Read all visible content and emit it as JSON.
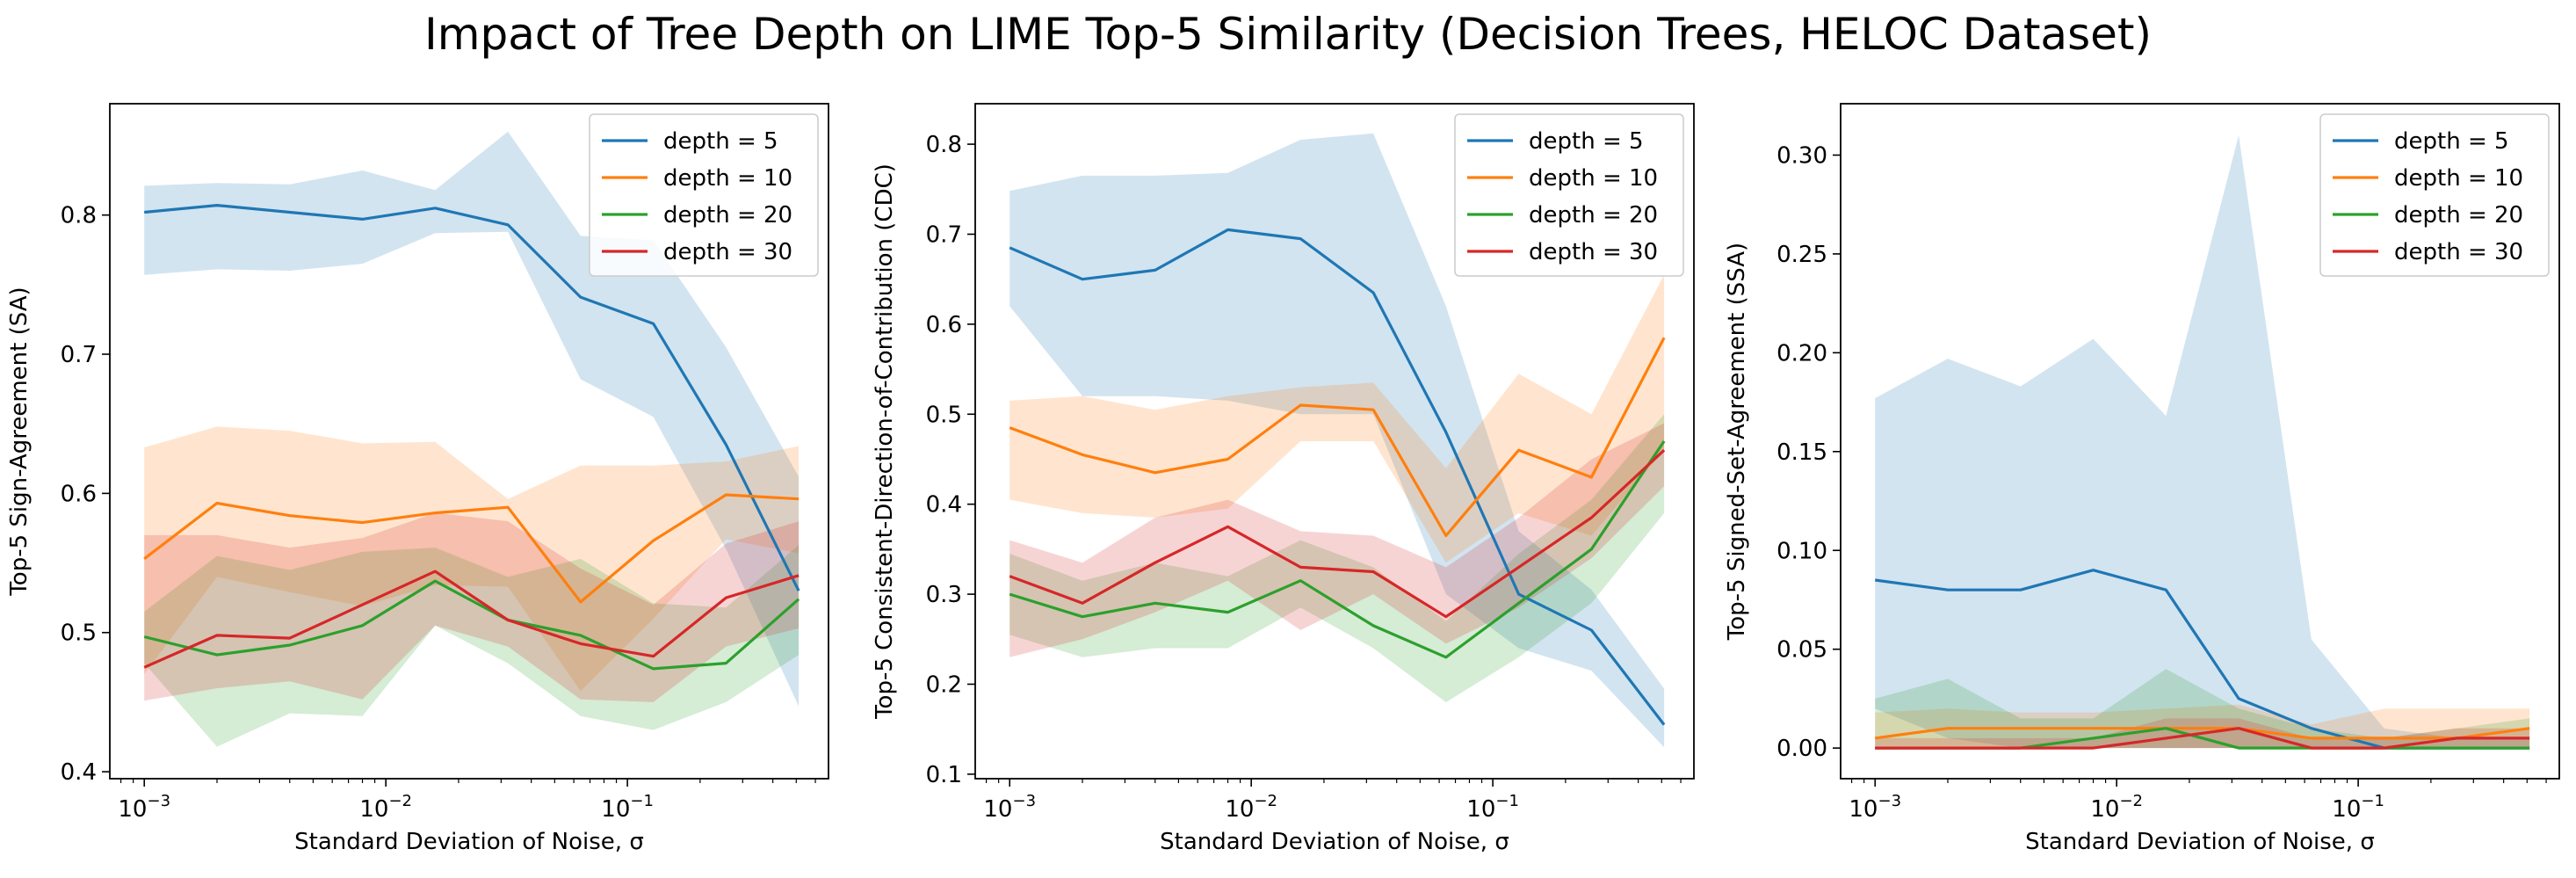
{
  "figure_title": "Impact of Tree Depth on LIME Top-5 Similarity (Decision Trees, HELOC Dataset)",
  "colors": {
    "depth = 5": "#1f77b4",
    "depth = 10": "#ff7f0e",
    "depth = 20": "#2ca02c",
    "depth = 30": "#d62728"
  },
  "chart_data": [
    {
      "type": "line",
      "title": "",
      "xlabel": "Standard Deviation of Noise, σ",
      "ylabel": "Top-5 Sign-Agreement (SA)",
      "xscale": "log",
      "xlim": [
        0.00072,
        0.68
      ],
      "ylim": [
        0.395,
        0.88
      ],
      "x_ticks": [
        0.001,
        0.01,
        0.1
      ],
      "x_tick_labels": [
        {
          "base": "10",
          "exp": "−3"
        },
        {
          "base": "10",
          "exp": "−2"
        },
        {
          "base": "10",
          "exp": "−1"
        }
      ],
      "y_ticks": [
        0.4,
        0.5,
        0.6,
        0.7,
        0.8
      ],
      "y_tick_labels": [
        "0.4",
        "0.5",
        "0.6",
        "0.7",
        "0.8"
      ],
      "legend_position": "upper right",
      "x": [
        0.001,
        0.002,
        0.004,
        0.008,
        0.016,
        0.032,
        0.064,
        0.128,
        0.256,
        0.512
      ],
      "series": [
        {
          "name": "depth = 5",
          "values": [
            0.802,
            0.807,
            0.802,
            0.797,
            0.805,
            0.793,
            0.741,
            0.722,
            0.635,
            0.53
          ],
          "lower": [
            0.757,
            0.761,
            0.76,
            0.765,
            0.787,
            0.788,
            0.682,
            0.655,
            0.56,
            0.447
          ],
          "upper": [
            0.821,
            0.823,
            0.822,
            0.832,
            0.818,
            0.86,
            0.785,
            0.782,
            0.705,
            0.612
          ]
        },
        {
          "name": "depth = 10",
          "values": [
            0.553,
            0.593,
            0.584,
            0.579,
            0.586,
            0.59,
            0.522,
            0.566,
            0.599,
            0.596
          ],
          "lower": [
            0.47,
            0.54,
            0.529,
            0.519,
            0.534,
            0.533,
            0.458,
            0.51,
            0.567,
            0.557
          ],
          "upper": [
            0.633,
            0.648,
            0.645,
            0.636,
            0.637,
            0.596,
            0.62,
            0.62,
            0.623,
            0.634
          ]
        },
        {
          "name": "depth = 20",
          "values": [
            0.497,
            0.484,
            0.491,
            0.505,
            0.537,
            0.509,
            0.498,
            0.474,
            0.478,
            0.524
          ],
          "lower": [
            0.478,
            0.418,
            0.442,
            0.44,
            0.505,
            0.478,
            0.44,
            0.43,
            0.45,
            0.484
          ],
          "upper": [
            0.515,
            0.555,
            0.545,
            0.558,
            0.561,
            0.54,
            0.553,
            0.521,
            0.518,
            0.563
          ]
        },
        {
          "name": "depth = 30",
          "values": [
            0.475,
            0.498,
            0.496,
            0.52,
            0.544,
            0.509,
            0.492,
            0.483,
            0.525,
            0.541
          ],
          "lower": [
            0.451,
            0.46,
            0.465,
            0.452,
            0.505,
            0.49,
            0.452,
            0.45,
            0.49,
            0.503
          ],
          "upper": [
            0.57,
            0.57,
            0.561,
            0.568,
            0.586,
            0.58,
            0.546,
            0.52,
            0.564,
            0.58
          ]
        }
      ]
    },
    {
      "type": "line",
      "title": "",
      "xlabel": "Standard Deviation of Noise, σ",
      "ylabel": "Top-5 Consistent-Direction-of-Contribution (CDC)",
      "xscale": "log",
      "xlim": [
        0.00072,
        0.68
      ],
      "ylim": [
        0.095,
        0.845
      ],
      "x_ticks": [
        0.001,
        0.01,
        0.1
      ],
      "x_tick_labels": [
        {
          "base": "10",
          "exp": "−3"
        },
        {
          "base": "10",
          "exp": "−2"
        },
        {
          "base": "10",
          "exp": "−1"
        }
      ],
      "y_ticks": [
        0.1,
        0.2,
        0.3,
        0.4,
        0.5,
        0.6,
        0.7,
        0.8
      ],
      "y_tick_labels": [
        "0.1",
        "0.2",
        "0.3",
        "0.4",
        "0.5",
        "0.6",
        "0.7",
        "0.8"
      ],
      "legend_position": "upper right",
      "x": [
        0.001,
        0.002,
        0.004,
        0.008,
        0.016,
        0.032,
        0.064,
        0.128,
        0.256,
        0.512
      ],
      "series": [
        {
          "name": "depth = 5",
          "values": [
            0.685,
            0.65,
            0.66,
            0.705,
            0.695,
            0.635,
            0.48,
            0.3,
            0.26,
            0.155
          ],
          "lower": [
            0.62,
            0.52,
            0.52,
            0.515,
            0.5,
            0.5,
            0.3,
            0.24,
            0.215,
            0.13
          ],
          "upper": [
            0.748,
            0.765,
            0.765,
            0.768,
            0.805,
            0.812,
            0.62,
            0.37,
            0.305,
            0.195
          ]
        },
        {
          "name": "depth = 10",
          "values": [
            0.485,
            0.455,
            0.435,
            0.45,
            0.51,
            0.505,
            0.365,
            0.46,
            0.43,
            0.585
          ],
          "lower": [
            0.405,
            0.39,
            0.385,
            0.395,
            0.47,
            0.47,
            0.335,
            0.39,
            0.365,
            0.46
          ],
          "upper": [
            0.515,
            0.52,
            0.505,
            0.52,
            0.53,
            0.535,
            0.44,
            0.545,
            0.5,
            0.655
          ]
        },
        {
          "name": "depth = 20",
          "values": [
            0.3,
            0.275,
            0.29,
            0.28,
            0.315,
            0.265,
            0.23,
            0.29,
            0.35,
            0.47
          ],
          "lower": [
            0.255,
            0.23,
            0.24,
            0.24,
            0.285,
            0.24,
            0.18,
            0.23,
            0.29,
            0.39
          ],
          "upper": [
            0.345,
            0.315,
            0.335,
            0.32,
            0.36,
            0.33,
            0.27,
            0.345,
            0.405,
            0.5
          ]
        },
        {
          "name": "depth = 30",
          "values": [
            0.32,
            0.29,
            0.335,
            0.375,
            0.33,
            0.325,
            0.275,
            0.33,
            0.385,
            0.46
          ],
          "lower": [
            0.23,
            0.25,
            0.28,
            0.315,
            0.26,
            0.3,
            0.245,
            0.285,
            0.34,
            0.42
          ],
          "upper": [
            0.36,
            0.335,
            0.385,
            0.405,
            0.37,
            0.365,
            0.33,
            0.385,
            0.45,
            0.49
          ]
        }
      ]
    },
    {
      "type": "line",
      "title": "",
      "xlabel": "Standard Deviation of Noise, σ",
      "ylabel": "Top-5 Signed-Set-Agreement (SSA)",
      "xscale": "log",
      "xlim": [
        0.00072,
        0.68
      ],
      "ylim": [
        -0.0155,
        0.326
      ],
      "x_ticks": [
        0.001,
        0.01,
        0.1
      ],
      "x_tick_labels": [
        {
          "base": "10",
          "exp": "−3"
        },
        {
          "base": "10",
          "exp": "−2"
        },
        {
          "base": "10",
          "exp": "−1"
        }
      ],
      "y_ticks": [
        0.0,
        0.05,
        0.1,
        0.15,
        0.2,
        0.25,
        0.3
      ],
      "y_tick_labels": [
        "0.00",
        "0.05",
        "0.10",
        "0.15",
        "0.20",
        "0.25",
        "0.30"
      ],
      "legend_position": "upper right",
      "x": [
        0.001,
        0.002,
        0.004,
        0.008,
        0.016,
        0.032,
        0.064,
        0.128,
        0.256,
        0.512
      ],
      "series": [
        {
          "name": "depth = 5",
          "values": [
            0.085,
            0.08,
            0.08,
            0.09,
            0.08,
            0.025,
            0.01,
            0.0,
            0.0,
            0.0
          ],
          "lower": [
            0.02,
            0.005,
            0.0,
            0.0,
            0.0,
            0.0,
            0.0,
            0.0,
            0.0,
            0.0
          ],
          "upper": [
            0.177,
            0.197,
            0.183,
            0.207,
            0.168,
            0.31,
            0.055,
            0.01,
            0.005,
            0.005
          ]
        },
        {
          "name": "depth = 10",
          "values": [
            0.005,
            0.01,
            0.01,
            0.01,
            0.01,
            0.01,
            0.005,
            0.005,
            0.005,
            0.01
          ],
          "lower": [
            0.0,
            0.0,
            0.0,
            0.0,
            0.0,
            0.0,
            0.0,
            0.0,
            0.0,
            0.0
          ],
          "upper": [
            0.018,
            0.02,
            0.018,
            0.018,
            0.02,
            0.022,
            0.012,
            0.02,
            0.02,
            0.02
          ]
        },
        {
          "name": "depth = 20",
          "values": [
            0.0,
            0.0,
            0.0,
            0.005,
            0.01,
            0.0,
            0.0,
            0.0,
            0.0,
            0.0
          ],
          "lower": [
            0.0,
            0.0,
            0.0,
            0.0,
            0.0,
            0.0,
            0.0,
            0.0,
            0.0,
            0.0
          ],
          "upper": [
            0.025,
            0.035,
            0.015,
            0.015,
            0.04,
            0.02,
            0.01,
            0.005,
            0.01,
            0.015
          ]
        },
        {
          "name": "depth = 30",
          "values": [
            0.0,
            0.0,
            0.0,
            0.0,
            0.005,
            0.01,
            0.0,
            0.0,
            0.005,
            0.005
          ],
          "lower": [
            0.0,
            0.0,
            0.0,
            0.0,
            0.0,
            0.0,
            0.0,
            0.0,
            0.0,
            0.0
          ],
          "upper": [
            0.005,
            0.005,
            0.005,
            0.005,
            0.015,
            0.015,
            0.005,
            0.005,
            0.01,
            0.01
          ]
        }
      ]
    }
  ]
}
